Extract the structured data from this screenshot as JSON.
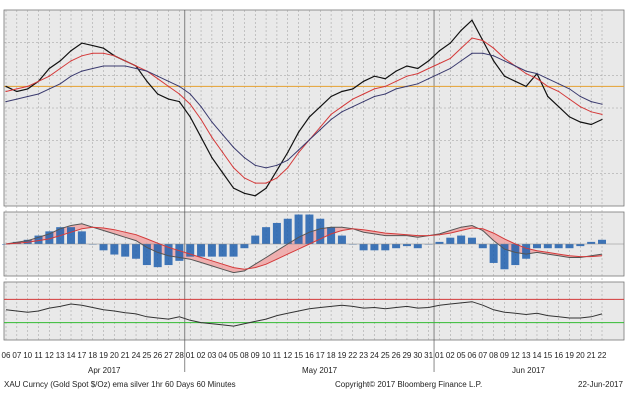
{
  "footer": {
    "left": "XAU Curncy (Gold Spot   $/Oz) ema silver 1hr 60 Days 60 Minutes",
    "center": "Copyright© 2017 Bloomberg Finance L.P.",
    "right": "22-Jun-2017"
  },
  "colors": {
    "background": "#e9e9e9",
    "grid": "#9a9a9a",
    "price": "#111111",
    "ema_fast": "#d43a3a",
    "ema_slow": "#3a3a6e",
    "hline": "#e6a030",
    "macd_hist_fill": "#1f5fae",
    "macd_band": "#f0a0a0",
    "rsi_upper": "#d43a3a",
    "rsi_lower": "#33bb33"
  },
  "chart_data": {
    "type": "line",
    "day_labels": [
      "06",
      "07",
      "10",
      "11",
      "12",
      "13",
      "14",
      "17",
      "18",
      "19",
      "20",
      "21",
      "24",
      "25",
      "26",
      "27",
      "28",
      "01",
      "02",
      "03",
      "04",
      "05",
      "08",
      "09",
      "10",
      "11",
      "12",
      "15",
      "16",
      "17",
      "18",
      "19",
      "22",
      "23",
      "24",
      "25",
      "26",
      "29",
      "30",
      "31",
      "01",
      "02",
      "05",
      "06",
      "07",
      "08",
      "09",
      "12",
      "13",
      "14",
      "15",
      "16",
      "19",
      "20",
      "21",
      "22"
    ],
    "month_labels": [
      {
        "label": "Apr 2017",
        "index": 8
      },
      {
        "label": "May 2017",
        "index": 27
      },
      {
        "label": "Jun 2017",
        "index": 48
      }
    ],
    "price_panel": {
      "series": [
        {
          "role": "price",
          "values": [
            78,
            76,
            77,
            80,
            85,
            88,
            92,
            95,
            94,
            93,
            90,
            88,
            86,
            80,
            75,
            73,
            72,
            66,
            58,
            50,
            44,
            38,
            36,
            35,
            38,
            45,
            52,
            60,
            66,
            70,
            74,
            76,
            77,
            80,
            82,
            81,
            84,
            86,
            85,
            88,
            92,
            95,
            100,
            104,
            96,
            88,
            82,
            80,
            78,
            83,
            74,
            70,
            66,
            64,
            63,
            65
          ]
        },
        {
          "role": "ema_fast",
          "values": [
            76,
            77,
            78,
            80,
            82,
            85,
            88,
            90,
            91,
            91,
            90,
            88,
            86,
            84,
            81,
            78,
            75,
            71,
            65,
            58,
            52,
            46,
            42,
            40,
            40,
            42,
            46,
            52,
            57,
            62,
            67,
            70,
            73,
            75,
            77,
            78,
            80,
            82,
            83,
            85,
            87,
            89,
            93,
            97,
            96,
            93,
            89,
            86,
            83,
            81,
            78,
            76,
            73,
            70,
            68,
            67
          ]
        },
        {
          "role": "ema_slow",
          "values": [
            72,
            73,
            74,
            75,
            77,
            79,
            82,
            84,
            85,
            86,
            86,
            86,
            85,
            84,
            82,
            80,
            78,
            75,
            70,
            64,
            59,
            54,
            50,
            47,
            46,
            47,
            49,
            53,
            57,
            61,
            65,
            68,
            70,
            72,
            74,
            75,
            77,
            78,
            79,
            81,
            83,
            85,
            88,
            91,
            91,
            90,
            88,
            86,
            84,
            83,
            81,
            79,
            77,
            74,
            72,
            71
          ]
        }
      ],
      "hline": 78
    },
    "macd_panel": {
      "series": [
        {
          "role": "macd",
          "values": [
            0,
            1,
            2,
            4,
            6,
            9,
            11,
            12,
            10,
            8,
            6,
            4,
            2,
            -2,
            -5,
            -7,
            -8,
            -9,
            -11,
            -13,
            -15,
            -17,
            -16,
            -12,
            -8,
            -4,
            0,
            4,
            7,
            9,
            10,
            10,
            9,
            7,
            6,
            5,
            5,
            5,
            4,
            5,
            6,
            8,
            10,
            11,
            8,
            2,
            -3,
            -5,
            -6,
            -5,
            -6,
            -7,
            -8,
            -8,
            -7,
            -6
          ]
        },
        {
          "role": "signal",
          "values": [
            0,
            0.5,
            1,
            2,
            3,
            5,
            7,
            9,
            10,
            9.5,
            8.5,
            7,
            5.5,
            3,
            0.5,
            -2,
            -4,
            -6,
            -8,
            -10,
            -12,
            -14,
            -15,
            -14,
            -12,
            -9,
            -6,
            -3,
            0,
            3,
            6,
            8,
            9,
            8.5,
            7.5,
            6.5,
            6,
            5.5,
            5,
            5,
            5.5,
            6.5,
            8,
            9.5,
            9,
            6.5,
            3,
            0,
            -2.5,
            -4,
            -5,
            -6,
            -7,
            -7.5,
            -7.5,
            -7
          ]
        }
      ]
    },
    "rsi_panel": {
      "series": [
        {
          "role": "rsi",
          "values": [
            52,
            50,
            48,
            50,
            55,
            58,
            62,
            60,
            56,
            52,
            50,
            47,
            45,
            40,
            38,
            36,
            40,
            34,
            30,
            28,
            26,
            24,
            28,
            32,
            36,
            42,
            46,
            50,
            54,
            56,
            58,
            60,
            58,
            55,
            56,
            54,
            56,
            58,
            55,
            56,
            60,
            62,
            64,
            66,
            60,
            52,
            48,
            46,
            44,
            46,
            42,
            40,
            38,
            38,
            40,
            45
          ]
        }
      ],
      "upper": 70,
      "lower": 30,
      "range": [
        0,
        100
      ]
    }
  }
}
